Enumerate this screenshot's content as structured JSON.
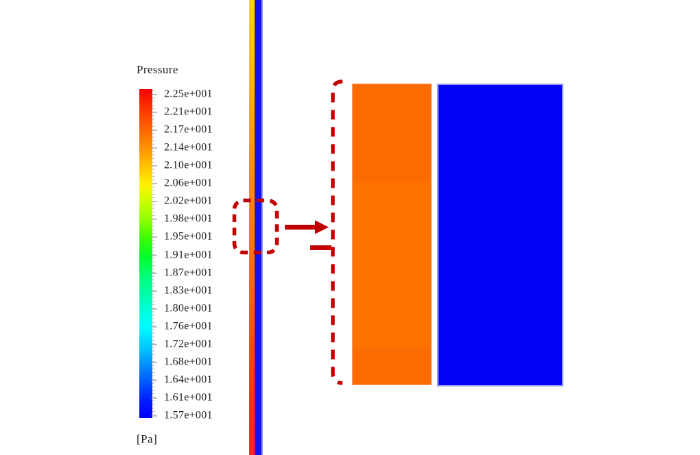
{
  "figure": {
    "legend": {
      "title": "Pressure",
      "unit": "[Pa]",
      "labels": [
        "2.25e+001",
        "2.21e+001",
        "2.17e+001",
        "2.14e+001",
        "2.10e+001",
        "2.06e+001",
        "2.02e+001",
        "1.98e+001",
        "1.95e+001",
        "1.91e+001",
        "1.87e+001",
        "1.83e+001",
        "1.80e+001",
        "1.76e+001",
        "1.72e+001",
        "1.68e+001",
        "1.64e+001",
        "1.61e+001",
        "1.57e+001"
      ]
    },
    "colors": {
      "annotation_red": "#C20000",
      "inset_left_region": "#FE7000",
      "inset_right_region": "#0303F7",
      "strip_top": "#FFD400",
      "strip_middle": "#FF7310",
      "strip_bottom": "#FF2222",
      "strip_blue_band": "#1412F0"
    }
  },
  "chart_data": {
    "type": "heatmap",
    "title": "Pressure",
    "unit": "[Pa]",
    "colorbar_labels": [
      "2.25e+001",
      "2.21e+001",
      "2.17e+001",
      "2.14e+001",
      "2.10e+001",
      "2.06e+001",
      "2.02e+001",
      "1.98e+001",
      "1.95e+001",
      "1.91e+001",
      "1.87e+001",
      "1.83e+001",
      "1.80e+001",
      "1.76e+001",
      "1.72e+001",
      "1.68e+001",
      "1.64e+001",
      "1.61e+001",
      "1.57e+001"
    ],
    "value_min": 15.7,
    "value_max": 22.5,
    "colormap_top_to_bottom": [
      "red",
      "orange",
      "yellow",
      "green",
      "cyan",
      "blue"
    ],
    "legend_position": "left",
    "content": {
      "channel_strip": {
        "left_band_gradient_top_to_bottom": [
          "yellow (~2.1e+001 Pa)",
          "orange (~2.15e+001 Pa)",
          "red (~2.25e+001 Pa)"
        ],
        "right_band": "blue (~1.57e+001 Pa)"
      },
      "magnified_inset": {
        "left_region": "orange (~2.15e+001 Pa)",
        "right_region": "blue (~1.57e+001 Pa)"
      },
      "annotations": [
        "dashed box on strip marking magnified area",
        "arrow from box to magnified view",
        "dashed bracket on left of magnified view"
      ]
    }
  }
}
